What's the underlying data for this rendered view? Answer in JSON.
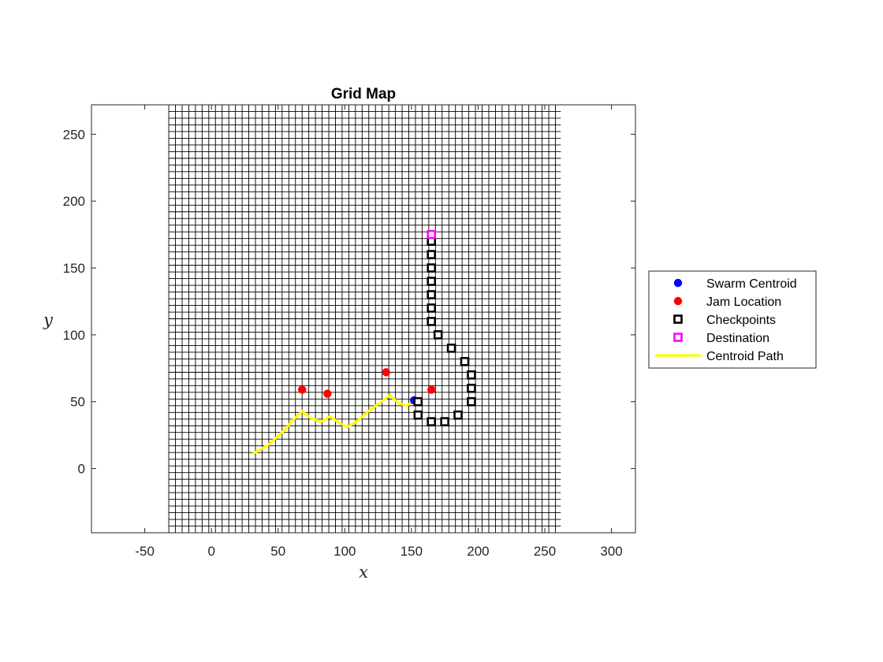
{
  "chart_data": {
    "type": "scatter",
    "title": "Grid Map",
    "xlabel": "x",
    "ylabel": "y",
    "xlim": [
      -90,
      318
    ],
    "ylim": [
      -48,
      272
    ],
    "xticks": [
      -50,
      0,
      50,
      100,
      150,
      200,
      250,
      300
    ],
    "yticks": [
      0,
      50,
      100,
      150,
      200,
      250
    ],
    "grid_region": {
      "x": [
        -32,
        262
      ],
      "y": [
        -48,
        272
      ],
      "spacing": 5
    },
    "legend_position": "outside-right",
    "series": [
      {
        "name": "Swarm Centroid",
        "kind": "marker-circle",
        "color": "#0000ff",
        "points": [
          [
            152,
            51
          ]
        ]
      },
      {
        "name": "Jam Location",
        "kind": "marker-circle",
        "color": "#ff0000",
        "points": [
          [
            68,
            59
          ],
          [
            87,
            56
          ],
          [
            131,
            72
          ],
          [
            165,
            59
          ]
        ]
      },
      {
        "name": "Checkpoints",
        "kind": "marker-square",
        "color": "#000000",
        "points": [
          [
            155,
            50
          ],
          [
            155,
            40
          ],
          [
            165,
            35
          ],
          [
            175,
            35
          ],
          [
            185,
            40
          ],
          [
            195,
            50
          ],
          [
            195,
            60
          ],
          [
            195,
            70
          ],
          [
            190,
            80
          ],
          [
            180,
            90
          ],
          [
            170,
            100
          ],
          [
            165,
            110
          ],
          [
            165,
            120
          ],
          [
            165,
            130
          ],
          [
            165,
            140
          ],
          [
            165,
            150
          ],
          [
            165,
            160
          ],
          [
            165,
            170
          ]
        ]
      },
      {
        "name": "Destination",
        "kind": "marker-square",
        "color": "#ff00ff",
        "points": [
          [
            165,
            175
          ]
        ]
      },
      {
        "name": "Centroid Path",
        "kind": "line",
        "color": "#ffff00",
        "points": [
          [
            31,
            11
          ],
          [
            43,
            18
          ],
          [
            55,
            29
          ],
          [
            60,
            35
          ],
          [
            68,
            43
          ],
          [
            74,
            38
          ],
          [
            82,
            35
          ],
          [
            89,
            39
          ],
          [
            96,
            34
          ],
          [
            102,
            31
          ],
          [
            110,
            36
          ],
          [
            118,
            43
          ],
          [
            126,
            49
          ],
          [
            134,
            55
          ],
          [
            140,
            49
          ],
          [
            146,
            47
          ],
          [
            150,
            49
          ],
          [
            152,
            51
          ]
        ]
      }
    ]
  }
}
